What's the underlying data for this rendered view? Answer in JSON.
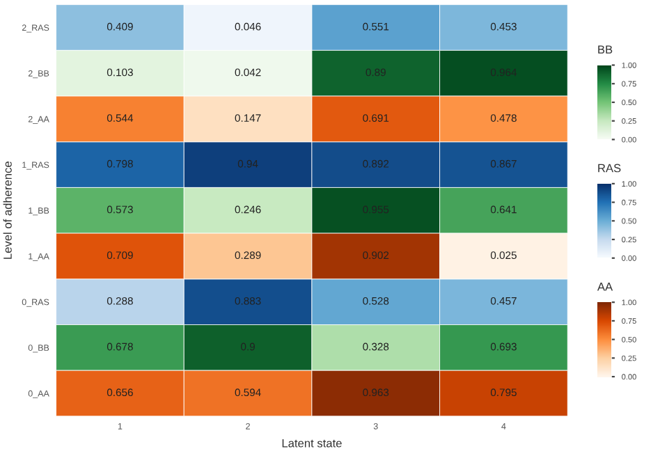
{
  "chart_data": [
    {
      "type": "heatmap",
      "xlabel": "Latent state",
      "ylabel": "Level of adherence",
      "categories": [
        "1",
        "2",
        "3",
        "4"
      ],
      "y_categories": [
        "2_RAS",
        "1_RAS",
        "0_RAS"
      ],
      "cells": [
        [
          0.409,
          0.046,
          0.551,
          0.453
        ],
        [
          0.798,
          0.94,
          0.892,
          0.867
        ],
        [
          0.288,
          0.883,
          0.528,
          0.457
        ]
      ],
      "colors": [
        "#f7fbff",
        "#c6dbef",
        "#6baed6",
        "#2171b5",
        "#08306b"
      ],
      "clabel": "RAS",
      "clim": [
        0,
        1
      ],
      "cticks": [
        {
          "value": 0,
          "label": "0.00"
        },
        {
          "value": 0.25,
          "label": "0.25"
        },
        {
          "value": 0.5,
          "label": "0.50"
        },
        {
          "value": 0.75,
          "label": "0.75"
        },
        {
          "value": 1,
          "label": "1.00"
        }
      ],
      "data_labels": true
    },
    {
      "type": "heatmap",
      "categories": [
        null,
        null,
        null,
        null
      ],
      "y_categories": [
        "2_BB",
        "1_BB",
        "0_BB"
      ],
      "cells": [
        [
          0.103,
          0.042,
          0.89,
          0.964
        ],
        [
          0.573,
          0.246,
          0.955,
          0.641
        ],
        [
          0.678,
          0.9,
          0.328,
          0.693
        ]
      ],
      "colors": [
        "#f7fcf5",
        "#c7e9c0",
        "#74c476",
        "#238b45",
        "#00441b"
      ],
      "clabel": "BB",
      "clim": [
        0,
        1
      ],
      "cticks": [
        {
          "value": 0,
          "label": "0.00"
        },
        {
          "value": 0.25,
          "label": "0.25"
        },
        {
          "value": 0.5,
          "label": "0.50"
        },
        {
          "value": 0.75,
          "label": "0.75"
        },
        {
          "value": 1,
          "label": "1.00"
        }
      ],
      "data_labels": true
    },
    {
      "type": "heatmap",
      "categories": [
        null,
        null,
        null,
        null
      ],
      "y_categories": [
        "2_AA",
        "1_AA",
        "0_AA"
      ],
      "cells": [
        [
          0.544,
          0.147,
          0.691,
          0.478
        ],
        [
          0.709,
          0.289,
          0.902,
          0.025
        ],
        [
          0.656,
          0.594,
          0.963,
          0.795
        ]
      ],
      "colors": [
        "#fff5eb",
        "#fdd0a2",
        "#fd8d3c",
        "#d94801",
        "#7f2704"
      ],
      "clabel": "AA",
      "clim": [
        0,
        1
      ],
      "cticks": [
        {
          "value": 0,
          "label": "0.00"
        },
        {
          "value": 0.25,
          "label": "0.25"
        },
        {
          "value": 0.5,
          "label": "0.50"
        },
        {
          "value": 0.75,
          "label": "0.75"
        },
        {
          "value": 1,
          "label": "1.00"
        }
      ],
      "data_labels": true
    }
  ]
}
